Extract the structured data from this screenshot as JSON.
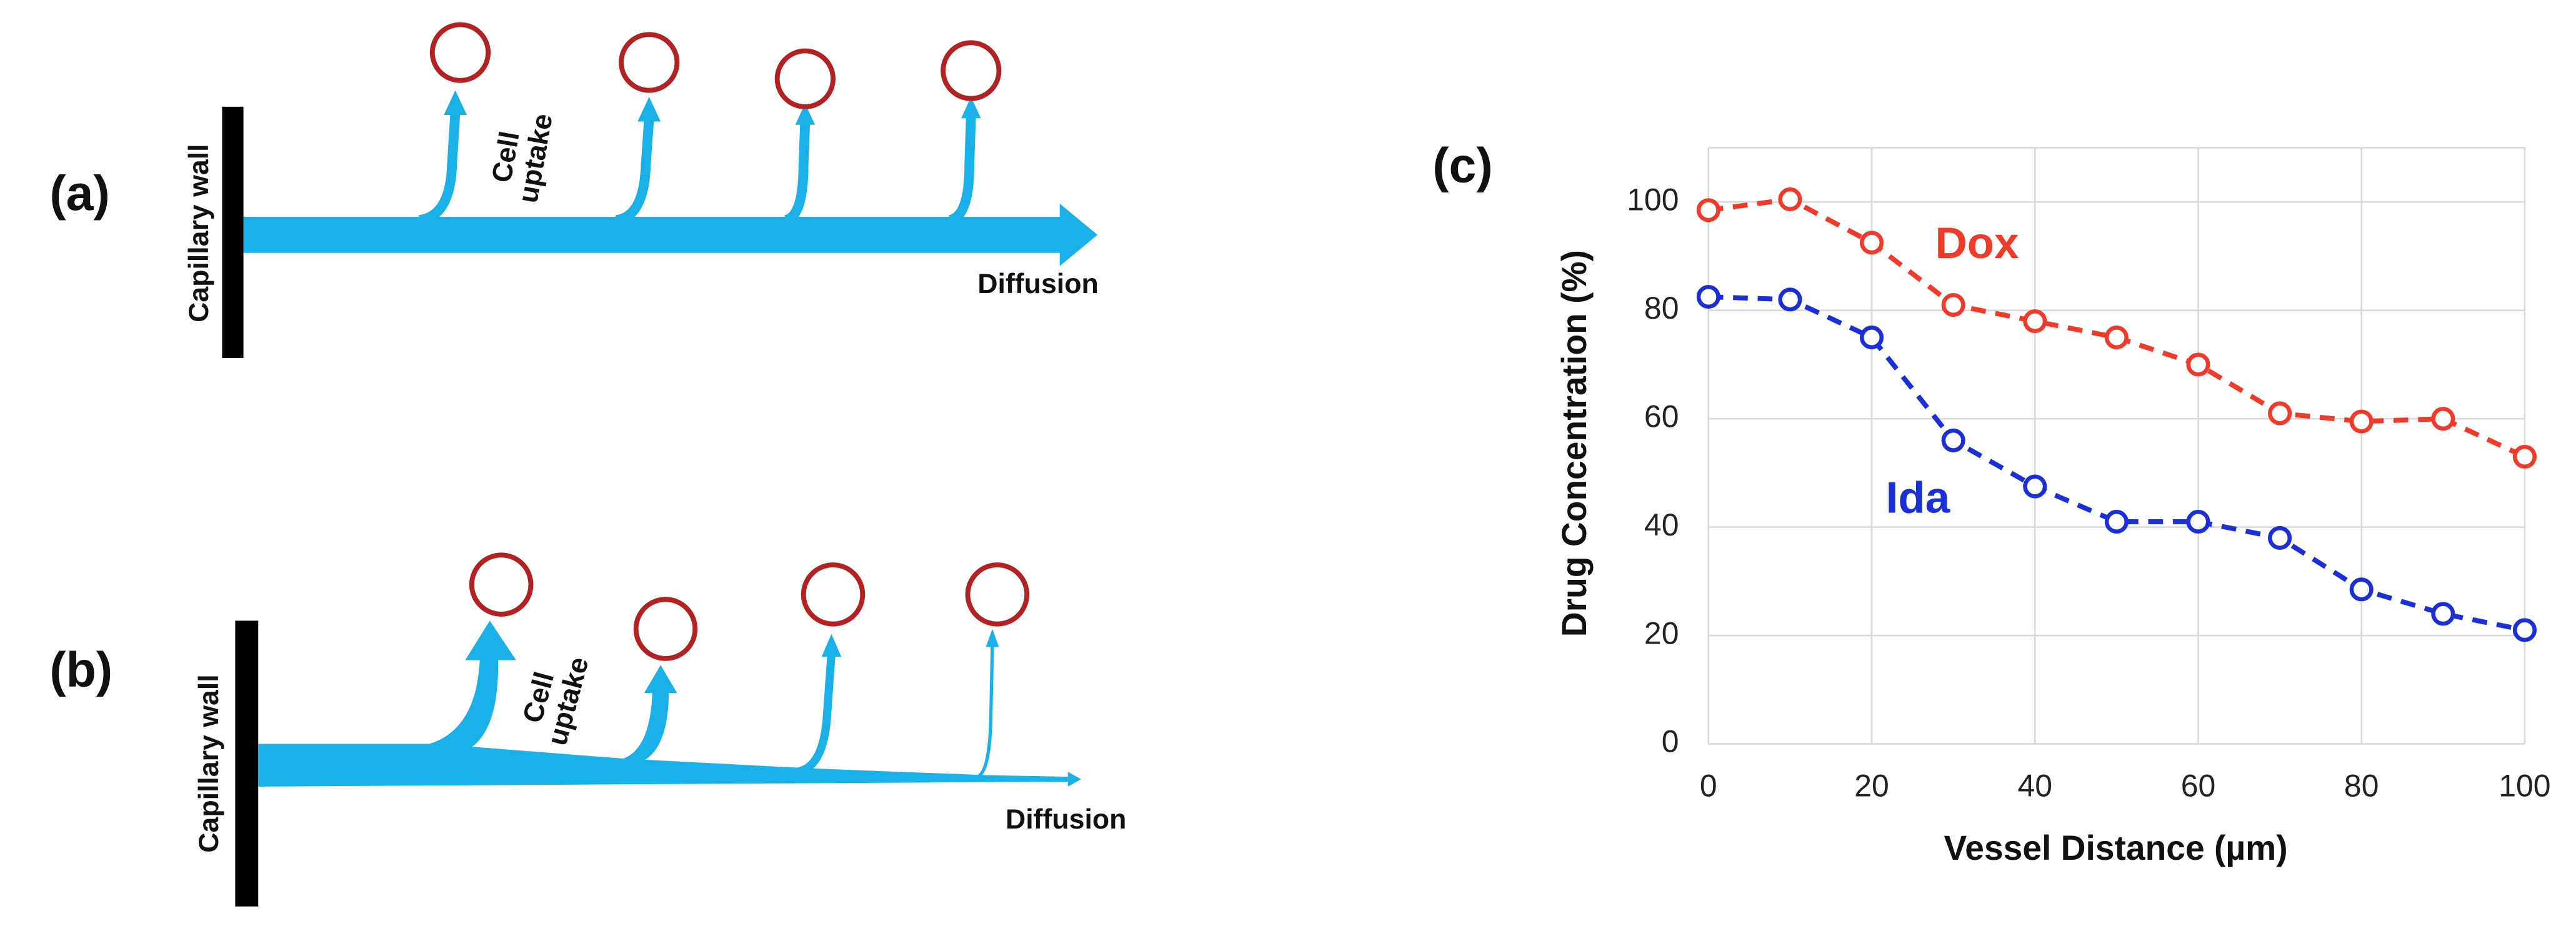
{
  "diagrams": {
    "a": {
      "label": "(a)",
      "wall": "Capillary wall",
      "uptake": [
        "Cell",
        "uptake"
      ],
      "diffusion": "Diffusion"
    },
    "b": {
      "label": "(b)",
      "wall": "Capillary wall",
      "uptake": [
        "Cell",
        "uptake"
      ],
      "diffusion": "Diffusion"
    }
  },
  "chart_data": {
    "type": "line",
    "panel_label": "(c)",
    "x_label": "Vessel Distance (µm)",
    "y_label": "Drug Concentration (%)",
    "x": [
      0,
      10,
      20,
      30,
      40,
      50,
      60,
      70,
      80,
      90,
      100
    ],
    "series": [
      {
        "name": "Dox",
        "color": "#f03a2a",
        "values": [
          98.5,
          100.5,
          92.5,
          81,
          78,
          75,
          70,
          61,
          59.5,
          60,
          53
        ]
      },
      {
        "name": "Ida",
        "color": "#1a2fd6",
        "values": [
          82.5,
          82,
          75,
          56,
          47.5,
          41,
          41,
          38,
          28.5,
          24,
          21
        ]
      }
    ],
    "xlim": [
      0,
      100
    ],
    "xticks": [
      0,
      20,
      40,
      60,
      80,
      100
    ],
    "ylim": [
      0,
      110
    ],
    "yticks": [
      0,
      20,
      40,
      60,
      80,
      100
    ],
    "grid": true
  }
}
